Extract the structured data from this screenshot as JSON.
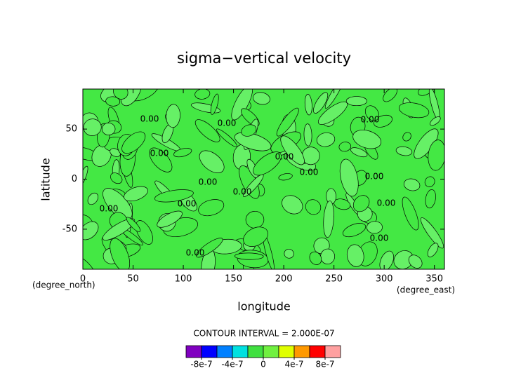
{
  "chart_data": {
    "type": "contour",
    "title": "sigma−vertical velocity",
    "xlabel": "longitude",
    "ylabel": "latitude",
    "xunit": "(degree_east)",
    "yunit": "(degree_north)",
    "xlim": [
      0,
      360
    ],
    "xticks": [
      0,
      50,
      100,
      150,
      200,
      250,
      300,
      350
    ],
    "ylim": [
      -90,
      90
    ],
    "yticks": [
      -50,
      0,
      50
    ],
    "fill_color": "#44e844",
    "region_color": "#66f066",
    "contour_labels": [
      "0.00",
      "0.00",
      "0.00",
      "0.00",
      "0.00",
      "0.00",
      "0.00",
      "0.00",
      "0.00",
      "0.00",
      "0.00",
      "0.00",
      "0.00",
      "0.00"
    ],
    "contour_interval": "CONTOUR INTERVAL = 2.000E-07",
    "colorbar": {
      "clim": [
        -1e-06,
        1e-06
      ],
      "colors": [
        "#8000c0",
        "#0000ff",
        "#0080ff",
        "#00e0e0",
        "#40e040",
        "#70f040",
        "#e0ff00",
        "#ff9900",
        "#ff0000",
        "#ffa0a0"
      ],
      "ticks": [
        {
          "value": -8e-07,
          "label": "-8e-7"
        },
        {
          "value": -4e-07,
          "label": "-4e-7"
        },
        0,
        {
          "value": 4e-07,
          "label": "4e-7"
        },
        {
          "value": 8e-07,
          "label": "8e-7"
        }
      ]
    }
  }
}
